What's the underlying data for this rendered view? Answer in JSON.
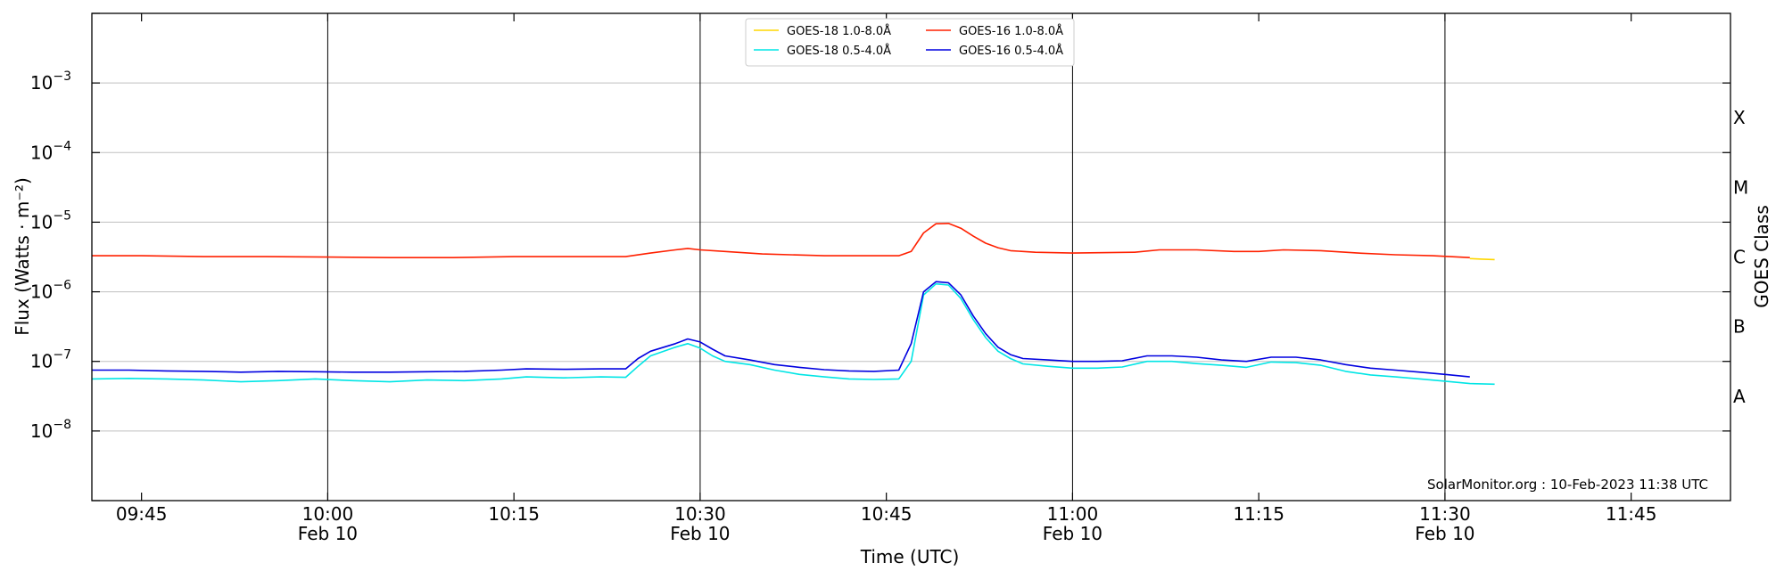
{
  "chart_data": {
    "type": "line",
    "title": "",
    "xlabel": "Time (UTC)",
    "ylabel": "Flux (Watts · m⁻²)",
    "y2label": "GOES Class",
    "yscale": "log",
    "ylim": [
      1e-09,
      0.01
    ],
    "xlim": [
      "09:41",
      "11:53"
    ],
    "grid": "horizontal at decades, vertical at 30-minute marks",
    "legend_location": "top-center",
    "credit": "SolarMonitor.org : 10-Feb-2023 11:38 UTC",
    "x_ticks": [
      {
        "time": "09:45",
        "label": "09:45",
        "sublabel": ""
      },
      {
        "time": "10:00",
        "label": "10:00",
        "sublabel": "Feb 10"
      },
      {
        "time": "10:15",
        "label": "10:15",
        "sublabel": ""
      },
      {
        "time": "10:30",
        "label": "10:30",
        "sublabel": "Feb 10"
      },
      {
        "time": "10:45",
        "label": "10:45",
        "sublabel": ""
      },
      {
        "time": "11:00",
        "label": "11:00",
        "sublabel": "Feb 10"
      },
      {
        "time": "11:15",
        "label": "11:15",
        "sublabel": ""
      },
      {
        "time": "11:30",
        "label": "11:30",
        "sublabel": "Feb 10"
      },
      {
        "time": "11:45",
        "label": "11:45",
        "sublabel": ""
      }
    ],
    "y_ticks": [
      {
        "value": 1e-08,
        "base": "10",
        "exp": "−8"
      },
      {
        "value": 1e-07,
        "base": "10",
        "exp": "−7"
      },
      {
        "value": 1e-06,
        "base": "10",
        "exp": "−6"
      },
      {
        "value": 1e-05,
        "base": "10",
        "exp": "−5"
      },
      {
        "value": 0.0001,
        "base": "10",
        "exp": "−4"
      },
      {
        "value": 0.001,
        "base": "10",
        "exp": "−3"
      }
    ],
    "goes_classes": [
      {
        "label": "A",
        "value": 3.16e-08
      },
      {
        "label": "B",
        "value": 3.16e-07
      },
      {
        "label": "C",
        "value": 3.16e-06
      },
      {
        "label": "M",
        "value": 3.16e-05
      },
      {
        "label": "X",
        "value": 0.000316
      }
    ],
    "series": [
      {
        "name": "GOES-18 1.0-8.0Å",
        "color": "#ffd700",
        "points": [
          [
            "11:32",
            3e-06
          ],
          [
            "11:33",
            2.95e-06
          ],
          [
            "11:34",
            2.9e-06
          ]
        ]
      },
      {
        "name": "GOES-18 0.5-4.0Å",
        "color": "#00e5e5",
        "points": [
          [
            "09:41",
            5.6e-08
          ],
          [
            "09:44",
            5.7e-08
          ],
          [
            "09:47",
            5.6e-08
          ],
          [
            "09:50",
            5.4e-08
          ],
          [
            "09:53",
            5.1e-08
          ],
          [
            "09:56",
            5.3e-08
          ],
          [
            "09:59",
            5.6e-08
          ],
          [
            "10:02",
            5.3e-08
          ],
          [
            "10:05",
            5.1e-08
          ],
          [
            "10:08",
            5.4e-08
          ],
          [
            "10:11",
            5.3e-08
          ],
          [
            "10:14",
            5.6e-08
          ],
          [
            "10:16",
            6e-08
          ],
          [
            "10:19",
            5.8e-08
          ],
          [
            "10:22",
            6e-08
          ],
          [
            "10:24",
            5.9e-08
          ],
          [
            "10:25",
            8.5e-08
          ],
          [
            "10:26",
            1.2e-07
          ],
          [
            "10:28",
            1.6e-07
          ],
          [
            "10:29",
            1.8e-07
          ],
          [
            "10:30",
            1.55e-07
          ],
          [
            "10:31",
            1.2e-07
          ],
          [
            "10:32",
            1e-07
          ],
          [
            "10:34",
            9e-08
          ],
          [
            "10:36",
            7.5e-08
          ],
          [
            "10:38",
            6.5e-08
          ],
          [
            "10:40",
            6e-08
          ],
          [
            "10:42",
            5.6e-08
          ],
          [
            "10:44",
            5.5e-08
          ],
          [
            "10:46",
            5.6e-08
          ],
          [
            "10:47",
            1e-07
          ],
          [
            "10:48",
            9e-07
          ],
          [
            "10:49",
            1.3e-06
          ],
          [
            "10:50",
            1.25e-06
          ],
          [
            "10:51",
            8e-07
          ],
          [
            "10:52",
            4e-07
          ],
          [
            "10:53",
            2.2e-07
          ],
          [
            "10:54",
            1.4e-07
          ],
          [
            "10:55",
            1.1e-07
          ],
          [
            "10:56",
            9.2e-08
          ],
          [
            "10:58",
            8.5e-08
          ],
          [
            "11:00",
            8e-08
          ],
          [
            "11:02",
            8e-08
          ],
          [
            "11:04",
            8.3e-08
          ],
          [
            "11:06",
            1e-07
          ],
          [
            "11:08",
            1e-07
          ],
          [
            "11:10",
            9.3e-08
          ],
          [
            "11:12",
            8.8e-08
          ],
          [
            "11:14",
            8.2e-08
          ],
          [
            "11:16",
            9.8e-08
          ],
          [
            "11:18",
            9.6e-08
          ],
          [
            "11:20",
            8.8e-08
          ],
          [
            "11:22",
            7.2e-08
          ],
          [
            "11:24",
            6.4e-08
          ],
          [
            "11:26",
            6e-08
          ],
          [
            "11:28",
            5.6e-08
          ],
          [
            "11:30",
            5.2e-08
          ],
          [
            "11:32",
            4.8e-08
          ],
          [
            "11:34",
            4.7e-08
          ]
        ]
      },
      {
        "name": "GOES-16 1.0-8.0Å",
        "color": "#ff2000",
        "points": [
          [
            "09:41",
            3.3e-06
          ],
          [
            "09:45",
            3.3e-06
          ],
          [
            "09:50",
            3.2e-06
          ],
          [
            "09:55",
            3.2e-06
          ],
          [
            "10:00",
            3.15e-06
          ],
          [
            "10:05",
            3.1e-06
          ],
          [
            "10:10",
            3.1e-06
          ],
          [
            "10:15",
            3.2e-06
          ],
          [
            "10:20",
            3.2e-06
          ],
          [
            "10:24",
            3.2e-06
          ],
          [
            "10:26",
            3.6e-06
          ],
          [
            "10:28",
            4e-06
          ],
          [
            "10:29",
            4.2e-06
          ],
          [
            "10:30",
            4e-06
          ],
          [
            "10:32",
            3.8e-06
          ],
          [
            "10:35",
            3.5e-06
          ],
          [
            "10:40",
            3.3e-06
          ],
          [
            "10:46",
            3.3e-06
          ],
          [
            "10:47",
            3.8e-06
          ],
          [
            "10:48",
            7e-06
          ],
          [
            "10:49",
            9.5e-06
          ],
          [
            "10:50",
            9.6e-06
          ],
          [
            "10:51",
            8.2e-06
          ],
          [
            "10:52",
            6.3e-06
          ],
          [
            "10:53",
            5e-06
          ],
          [
            "10:54",
            4.3e-06
          ],
          [
            "10:55",
            3.9e-06
          ],
          [
            "10:57",
            3.7e-06
          ],
          [
            "11:00",
            3.6e-06
          ],
          [
            "11:05",
            3.7e-06
          ],
          [
            "11:07",
            4e-06
          ],
          [
            "11:10",
            4e-06
          ],
          [
            "11:13",
            3.8e-06
          ],
          [
            "11:15",
            3.8e-06
          ],
          [
            "11:17",
            4e-06
          ],
          [
            "11:20",
            3.9e-06
          ],
          [
            "11:23",
            3.6e-06
          ],
          [
            "11:26",
            3.4e-06
          ],
          [
            "11:29",
            3.3e-06
          ],
          [
            "11:32",
            3.1e-06
          ]
        ]
      },
      {
        "name": "GOES-16 0.5-4.0Å",
        "color": "#0000e0",
        "points": [
          [
            "09:41",
            7.5e-08
          ],
          [
            "09:44",
            7.5e-08
          ],
          [
            "09:47",
            7.3e-08
          ],
          [
            "09:50",
            7.2e-08
          ],
          [
            "09:53",
            7e-08
          ],
          [
            "09:56",
            7.2e-08
          ],
          [
            "09:59",
            7.1e-08
          ],
          [
            "10:02",
            7e-08
          ],
          [
            "10:05",
            7e-08
          ],
          [
            "10:08",
            7.1e-08
          ],
          [
            "10:11",
            7.2e-08
          ],
          [
            "10:14",
            7.5e-08
          ],
          [
            "10:16",
            7.8e-08
          ],
          [
            "10:19",
            7.7e-08
          ],
          [
            "10:22",
            7.8e-08
          ],
          [
            "10:24",
            7.8e-08
          ],
          [
            "10:25",
            1.1e-07
          ],
          [
            "10:26",
            1.4e-07
          ],
          [
            "10:28",
            1.8e-07
          ],
          [
            "10:29",
            2.1e-07
          ],
          [
            "10:30",
            1.9e-07
          ],
          [
            "10:31",
            1.5e-07
          ],
          [
            "10:32",
            1.2e-07
          ],
          [
            "10:34",
            1.05e-07
          ],
          [
            "10:36",
            9e-08
          ],
          [
            "10:38",
            8.2e-08
          ],
          [
            "10:40",
            7.6e-08
          ],
          [
            "10:42",
            7.3e-08
          ],
          [
            "10:44",
            7.2e-08
          ],
          [
            "10:46",
            7.5e-08
          ],
          [
            "10:47",
            1.8e-07
          ],
          [
            "10:48",
            1e-06
          ],
          [
            "10:49",
            1.4e-06
          ],
          [
            "10:50",
            1.35e-06
          ],
          [
            "10:51",
            9e-07
          ],
          [
            "10:52",
            4.5e-07
          ],
          [
            "10:53",
            2.5e-07
          ],
          [
            "10:54",
            1.6e-07
          ],
          [
            "10:55",
            1.25e-07
          ],
          [
            "10:56",
            1.1e-07
          ],
          [
            "10:58",
            1.05e-07
          ],
          [
            "11:00",
            1e-07
          ],
          [
            "11:02",
            1e-07
          ],
          [
            "11:04",
            1.02e-07
          ],
          [
            "11:06",
            1.2e-07
          ],
          [
            "11:08",
            1.2e-07
          ],
          [
            "11:10",
            1.15e-07
          ],
          [
            "11:12",
            1.05e-07
          ],
          [
            "11:14",
            1e-07
          ],
          [
            "11:16",
            1.15e-07
          ],
          [
            "11:18",
            1.15e-07
          ],
          [
            "11:20",
            1.05e-07
          ],
          [
            "11:22",
            9e-08
          ],
          [
            "11:24",
            8e-08
          ],
          [
            "11:26",
            7.5e-08
          ],
          [
            "11:28",
            7e-08
          ],
          [
            "11:30",
            6.5e-08
          ],
          [
            "11:32",
            6e-08
          ]
        ]
      }
    ]
  }
}
